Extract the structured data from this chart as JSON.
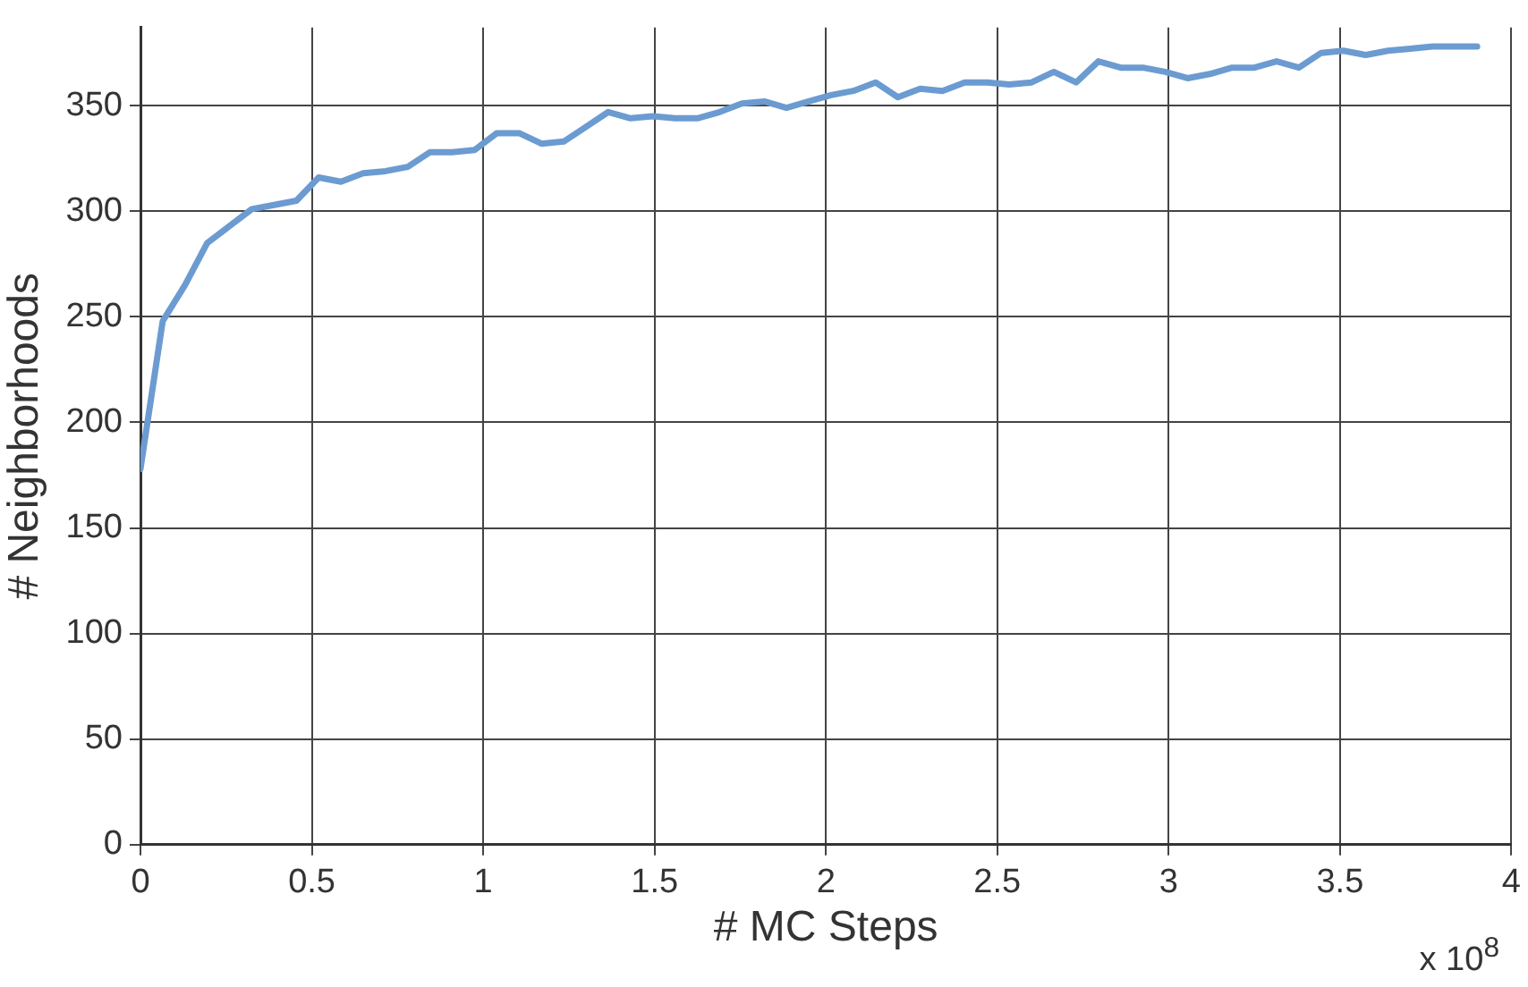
{
  "chart_data": {
    "type": "line",
    "xlabel": "# MC Steps",
    "ylabel": "# Neighborhoods",
    "annotations": [
      "x 10$^{8}$"
    ],
    "x": [
      0,
      0.065,
      0.13,
      0.195,
      0.26,
      0.325,
      0.39,
      0.455,
      0.52,
      0.585,
      0.65,
      0.715,
      0.78,
      0.845,
      0.91,
      0.975,
      1.04,
      1.105,
      1.17,
      1.235,
      1.3,
      1.365,
      1.43,
      1.495,
      1.56,
      1.625,
      1.69,
      1.755,
      1.82,
      1.885,
      1.95,
      2.015,
      2.08,
      2.145,
      2.21,
      2.275,
      2.34,
      2.405,
      2.47,
      2.535,
      2.6,
      2.665,
      2.73,
      2.795,
      2.86,
      2.925,
      2.99,
      3.055,
      3.12,
      3.185,
      3.25,
      3.315,
      3.38,
      3.445,
      3.51,
      3.575,
      3.64,
      3.705,
      3.77,
      3.835,
      3.9
    ],
    "series": [
      {
        "color": "#6b9bd1",
        "values": [
          178,
          248,
          265,
          285,
          293,
          301,
          303,
          305,
          316,
          314,
          318,
          319,
          321,
          328,
          328,
          329,
          337,
          337,
          332,
          333,
          340,
          347,
          344,
          345,
          344,
          344,
          347,
          351,
          352,
          349,
          352,
          355,
          357,
          361,
          354,
          358,
          357,
          361,
          361,
          360,
          361,
          366,
          361,
          371,
          368,
          368,
          366,
          363,
          365,
          368,
          368,
          371,
          368,
          375,
          376,
          374,
          376,
          377,
          378,
          378,
          378
        ]
      }
    ],
    "xlim": [
      0,
      4
    ],
    "xticks": [
      0,
      0.5,
      1,
      1.5,
      2,
      2.5,
      3,
      3.5,
      4
    ],
    "ylim": [
      0,
      387
    ],
    "yticks": [
      0,
      50,
      100,
      150,
      200,
      250,
      300,
      350
    ],
    "grid": true,
    "legend": false,
    "marker": "none",
    "line_style": "solid"
  }
}
